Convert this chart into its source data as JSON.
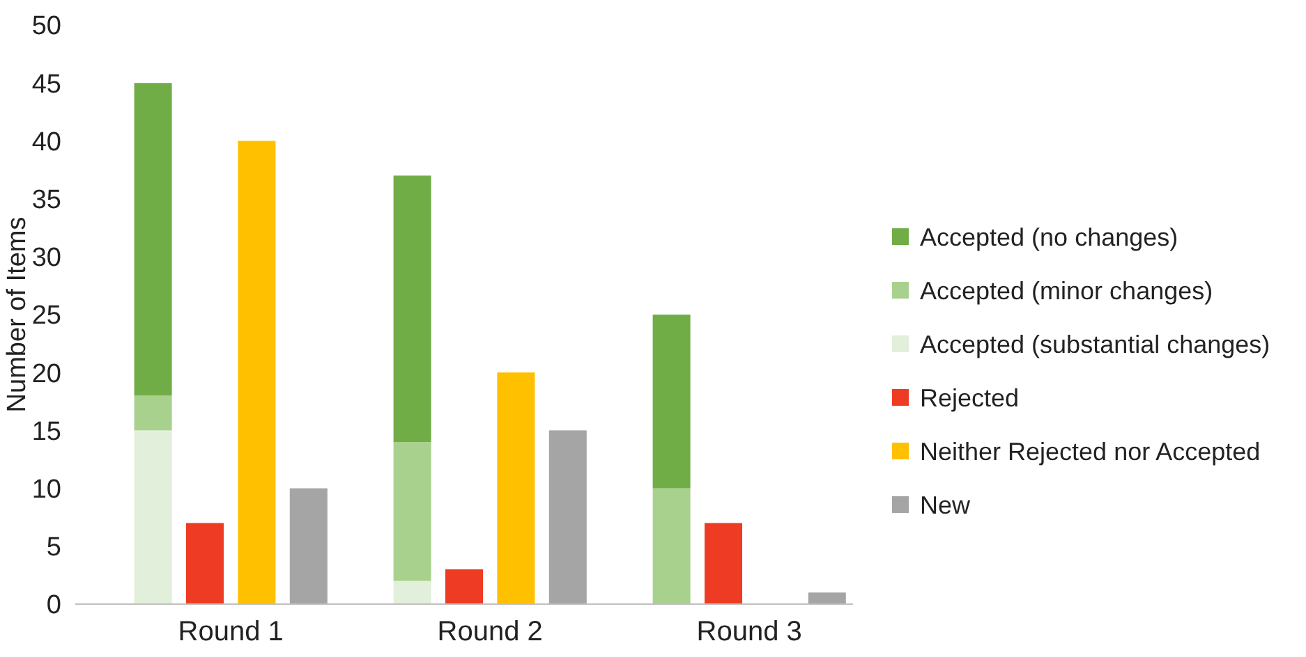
{
  "chart_data": {
    "type": "bar",
    "ylabel": "Number of Items",
    "categories": [
      null,
      null,
      "Round 1",
      null,
      null,
      null,
      null,
      "Round 2",
      null,
      null,
      null,
      null,
      "Round 3",
      null,
      null
    ],
    "ylim": [
      0,
      50
    ],
    "yticks": [
      0,
      5,
      10,
      15,
      20,
      25,
      30,
      35,
      40,
      45,
      50
    ],
    "grid": false,
    "legend": "right",
    "stacked": true,
    "series": [
      {
        "name": "New",
        "color": "#a5a5a5",
        "values": [
          null,
          null,
          null,
          null,
          10,
          null,
          null,
          null,
          null,
          15,
          null,
          null,
          null,
          null,
          1
        ]
      },
      {
        "name": "Neither Rejected nor Accepted",
        "color": "#ffc000",
        "values": [
          null,
          null,
          null,
          40,
          null,
          null,
          null,
          null,
          20,
          null,
          null,
          null,
          null,
          null,
          null
        ]
      },
      {
        "name": "Rejected",
        "color": "#ee3b24",
        "values": [
          null,
          null,
          7,
          null,
          null,
          null,
          null,
          3,
          null,
          null,
          null,
          null,
          7,
          null,
          null
        ]
      },
      {
        "name": "Accepted (substantial changes)",
        "color": "#e2efda",
        "values": [
          null,
          15,
          null,
          null,
          null,
          null,
          2,
          null,
          null,
          null,
          null,
          0,
          null,
          null,
          null
        ]
      },
      {
        "name": "Accepted (minor changes)",
        "color": "#a9d18e",
        "values": [
          null,
          3,
          null,
          null,
          null,
          null,
          12,
          null,
          null,
          null,
          null,
          10,
          null,
          null,
          null
        ]
      },
      {
        "name": "Accepted (no changes)",
        "color": "#70ad47",
        "values": [
          null,
          27,
          null,
          null,
          null,
          null,
          23,
          null,
          null,
          null,
          null,
          15,
          null,
          null,
          null
        ]
      }
    ]
  }
}
